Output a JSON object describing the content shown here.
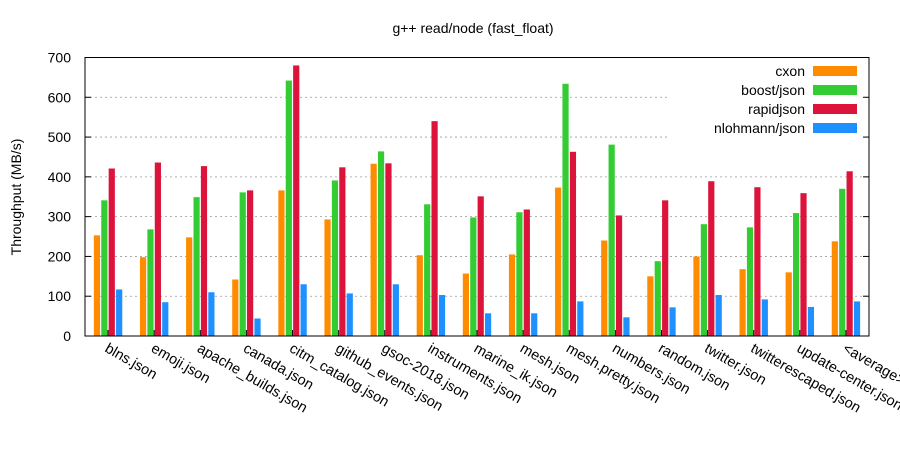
{
  "chart_data": {
    "type": "bar",
    "title": "g++ read/node (fast_float)",
    "xlabel": "",
    "ylabel": "Throughput (MB/s)",
    "ylim": [
      0,
      700
    ],
    "yticks": [
      0,
      100,
      200,
      300,
      400,
      500,
      600,
      700
    ],
    "grid": true,
    "legend_position": "top-right",
    "categories": [
      "blns.json",
      "emoji.json",
      "apache_builds.json",
      "canada.json",
      "citm_catalog.json",
      "github_events.json",
      "gsoc-2018.json",
      "instruments.json",
      "marine_ik.json",
      "mesh.json",
      "mesh.pretty.json",
      "numbers.json",
      "random.json",
      "twitter.json",
      "twitterescaped.json",
      "update-center.json",
      "<average>"
    ],
    "series": [
      {
        "name": "cxon",
        "color": "#ff8c00",
        "values": [
          253,
          198,
          248,
          142,
          366,
          293,
          433,
          203,
          157,
          205,
          373,
          240,
          150,
          200,
          168,
          160,
          238
        ]
      },
      {
        "name": "boost/json",
        "color": "#33cc33",
        "values": [
          341,
          268,
          349,
          361,
          642,
          391,
          464,
          331,
          298,
          311,
          634,
          481,
          188,
          281,
          273,
          309,
          370
        ]
      },
      {
        "name": "rapidjson",
        "color": "#dc143c",
        "values": [
          421,
          436,
          427,
          366,
          680,
          424,
          434,
          540,
          351,
          318,
          463,
          303,
          341,
          389,
          374,
          359,
          414
        ]
      },
      {
        "name": "nlohmann/json",
        "color": "#1e90ff",
        "values": [
          117,
          85,
          110,
          44,
          130,
          107,
          130,
          103,
          57,
          57,
          87,
          47,
          72,
          103,
          92,
          73,
          87
        ]
      }
    ]
  }
}
